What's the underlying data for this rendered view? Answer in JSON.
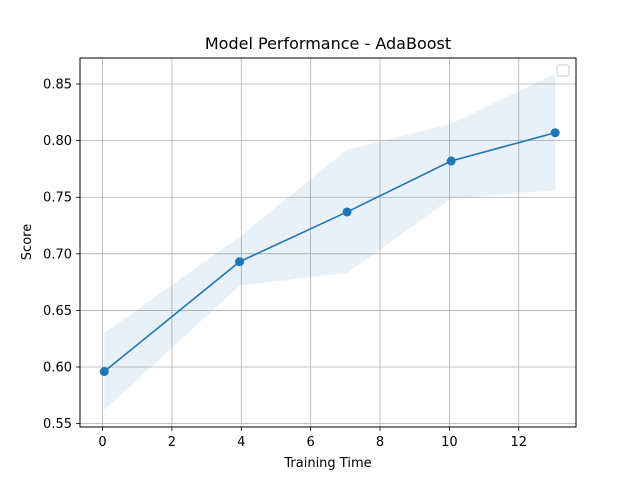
{
  "chart_data": {
    "type": "line",
    "title": "Model Performance - AdaBoost",
    "xlabel": "Training Time",
    "ylabel": "Score",
    "xlim": [
      -0.65,
      13.65
    ],
    "ylim": [
      0.547,
      0.873
    ],
    "xticks": [
      0,
      2,
      4,
      6,
      8,
      10,
      12
    ],
    "yticks": [
      0.55,
      0.6,
      0.65,
      0.7,
      0.75,
      0.8,
      0.85
    ],
    "ytick_labels": [
      "0.55",
      "0.60",
      "0.65",
      "0.70",
      "0.75",
      "0.80",
      "0.85"
    ],
    "grid": true,
    "legend": "top-right",
    "series": [
      {
        "x": [
          0.05,
          3.95,
          7.05,
          10.05,
          13.05
        ],
        "values": [
          0.596,
          0.693,
          0.737,
          0.782,
          0.807
        ],
        "lower": [
          0.562,
          0.672,
          0.683,
          0.749,
          0.756
        ],
        "upper": [
          0.63,
          0.715,
          0.792,
          0.815,
          0.859
        ],
        "color": "#1f77b4",
        "band_color": "#1f77b4"
      }
    ]
  }
}
